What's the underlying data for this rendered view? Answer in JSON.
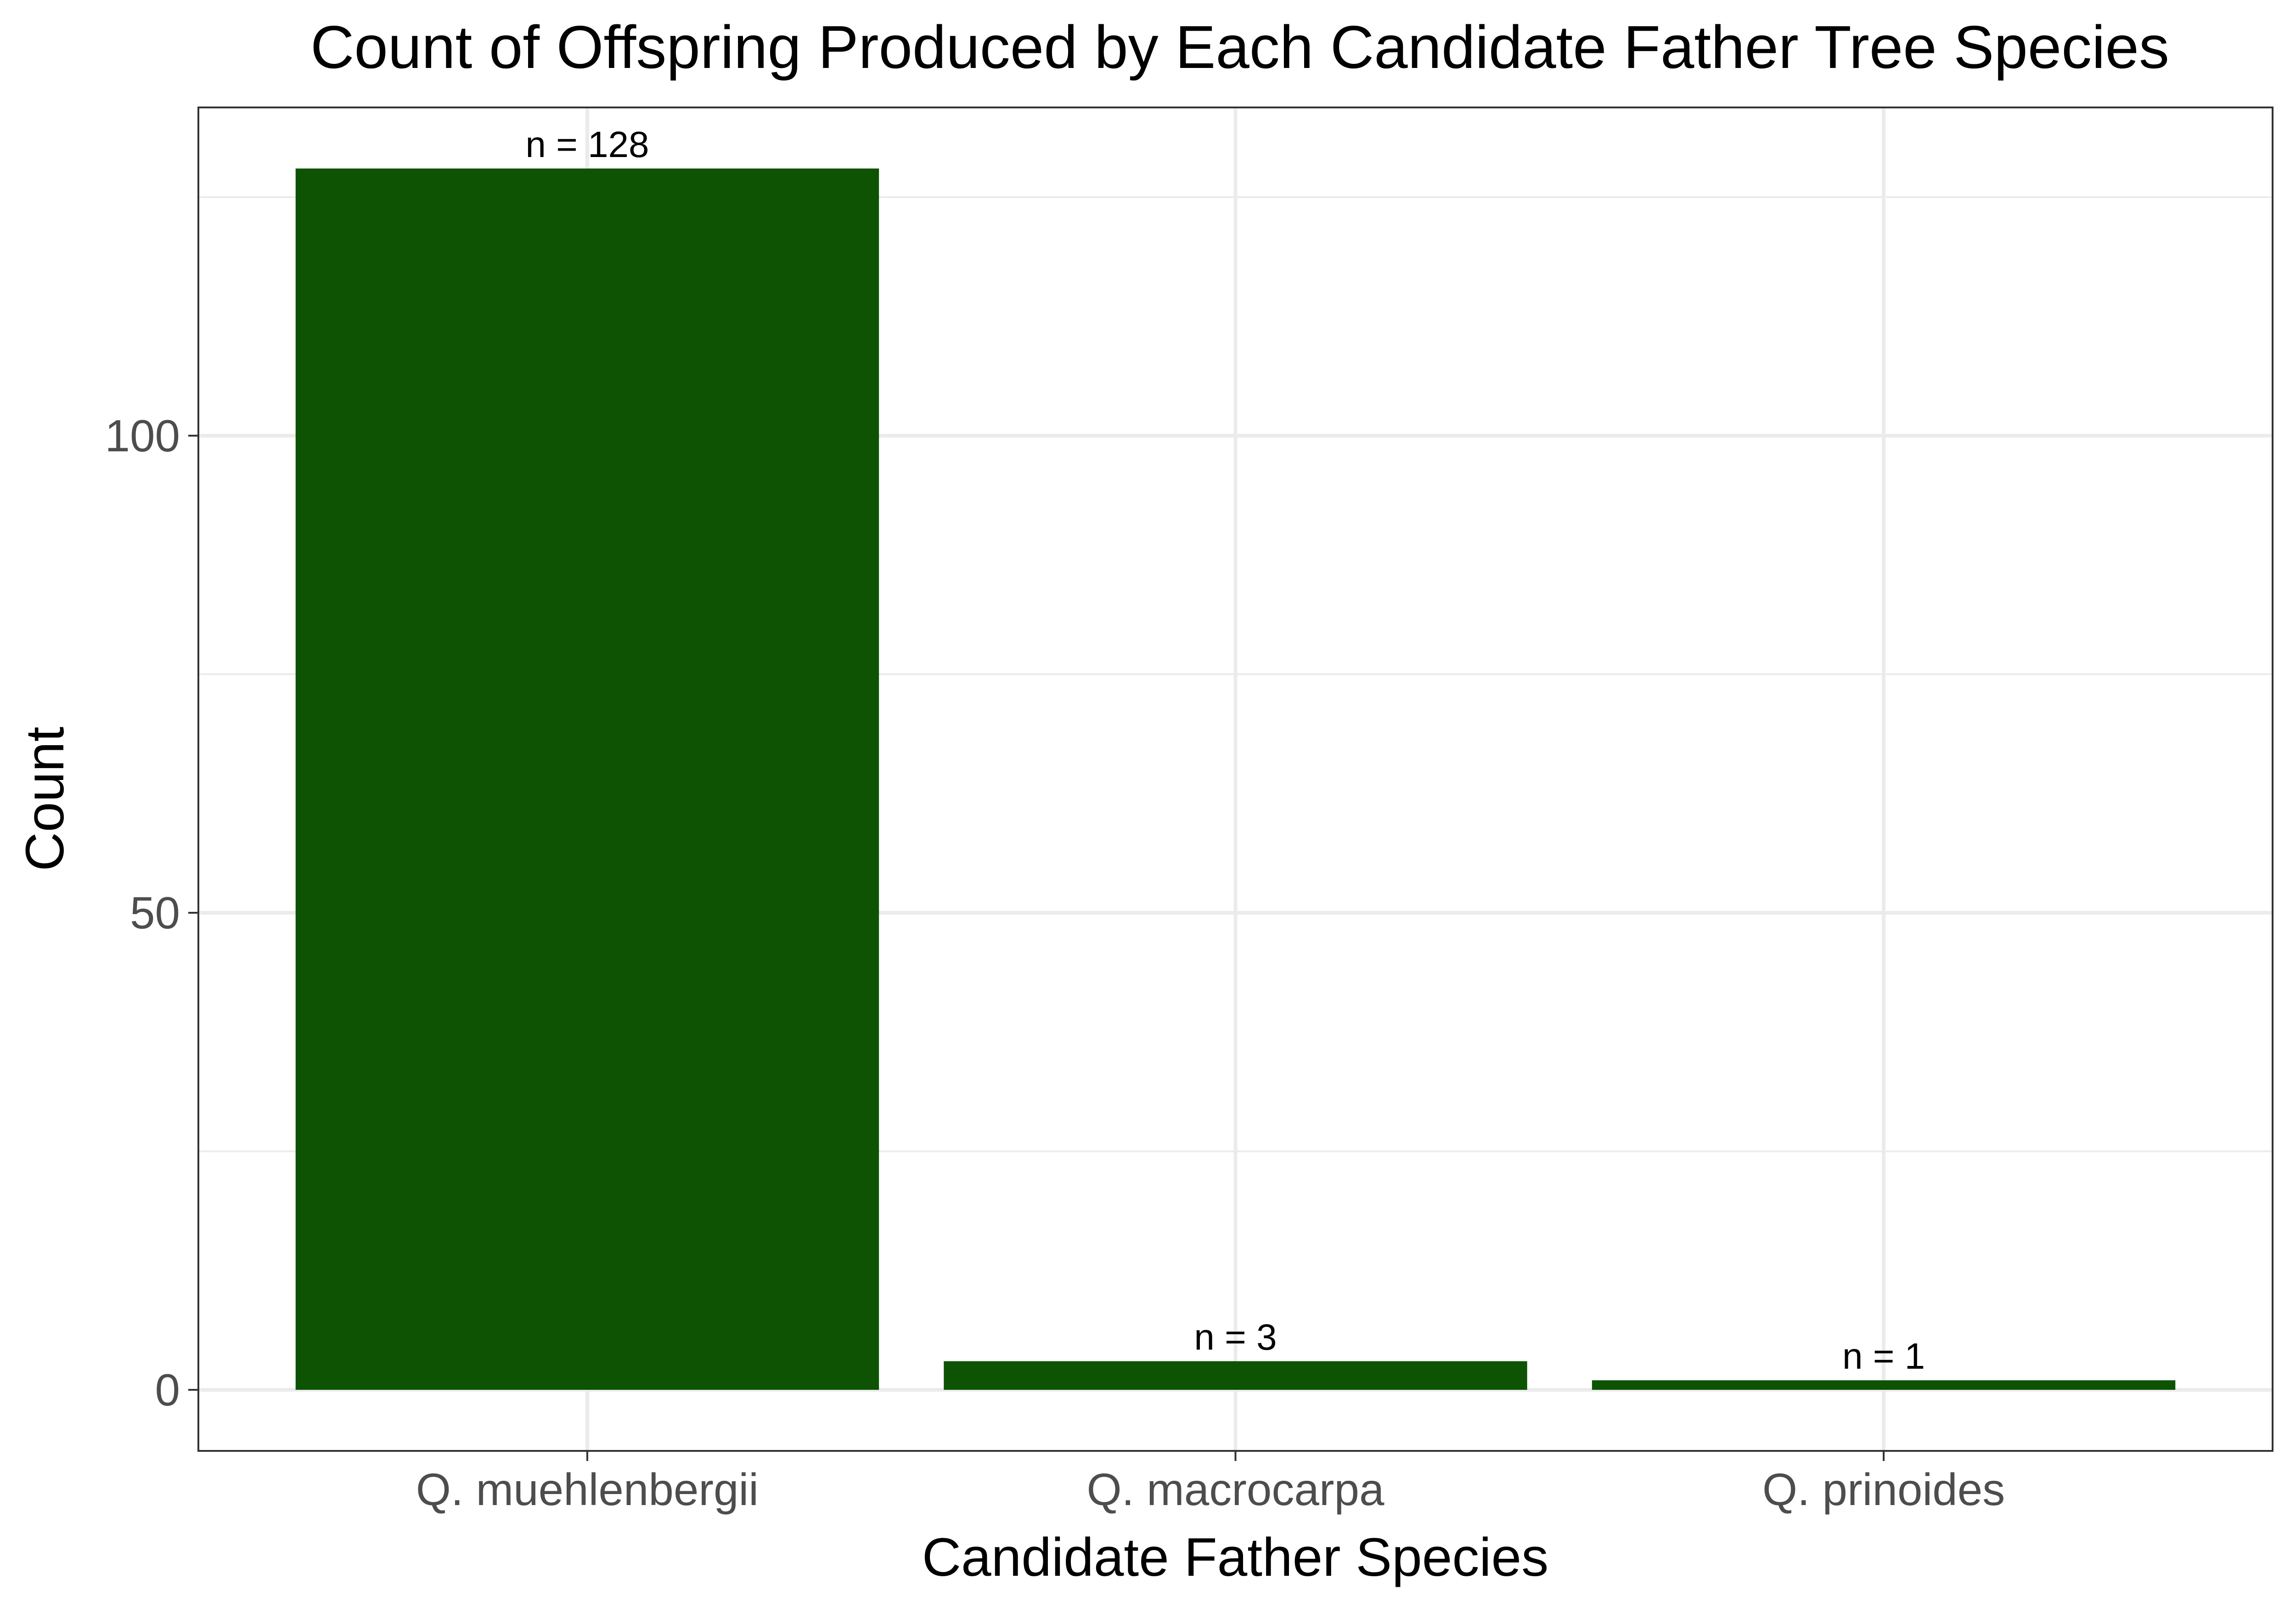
{
  "chart_data": {
    "type": "bar",
    "title": "Count of Offspring Produced by Each Candidate Father Tree Species",
    "xlabel": "Candidate Father Species",
    "ylabel": "Count",
    "categories": [
      "Q. muehlenbergii",
      "Q. macrocarpa",
      "Q. prinoides"
    ],
    "values": [
      128,
      3,
      1
    ],
    "data_labels": [
      "n = 128",
      "n = 3",
      "n = 1"
    ],
    "y_ticks": [
      0,
      50,
      100
    ],
    "y_tick_labels": [
      "0",
      "50",
      "100"
    ],
    "ylim": [
      -6.4,
      134.4
    ],
    "bar_color": "#0d5303",
    "grid": true,
    "legend": "none"
  }
}
